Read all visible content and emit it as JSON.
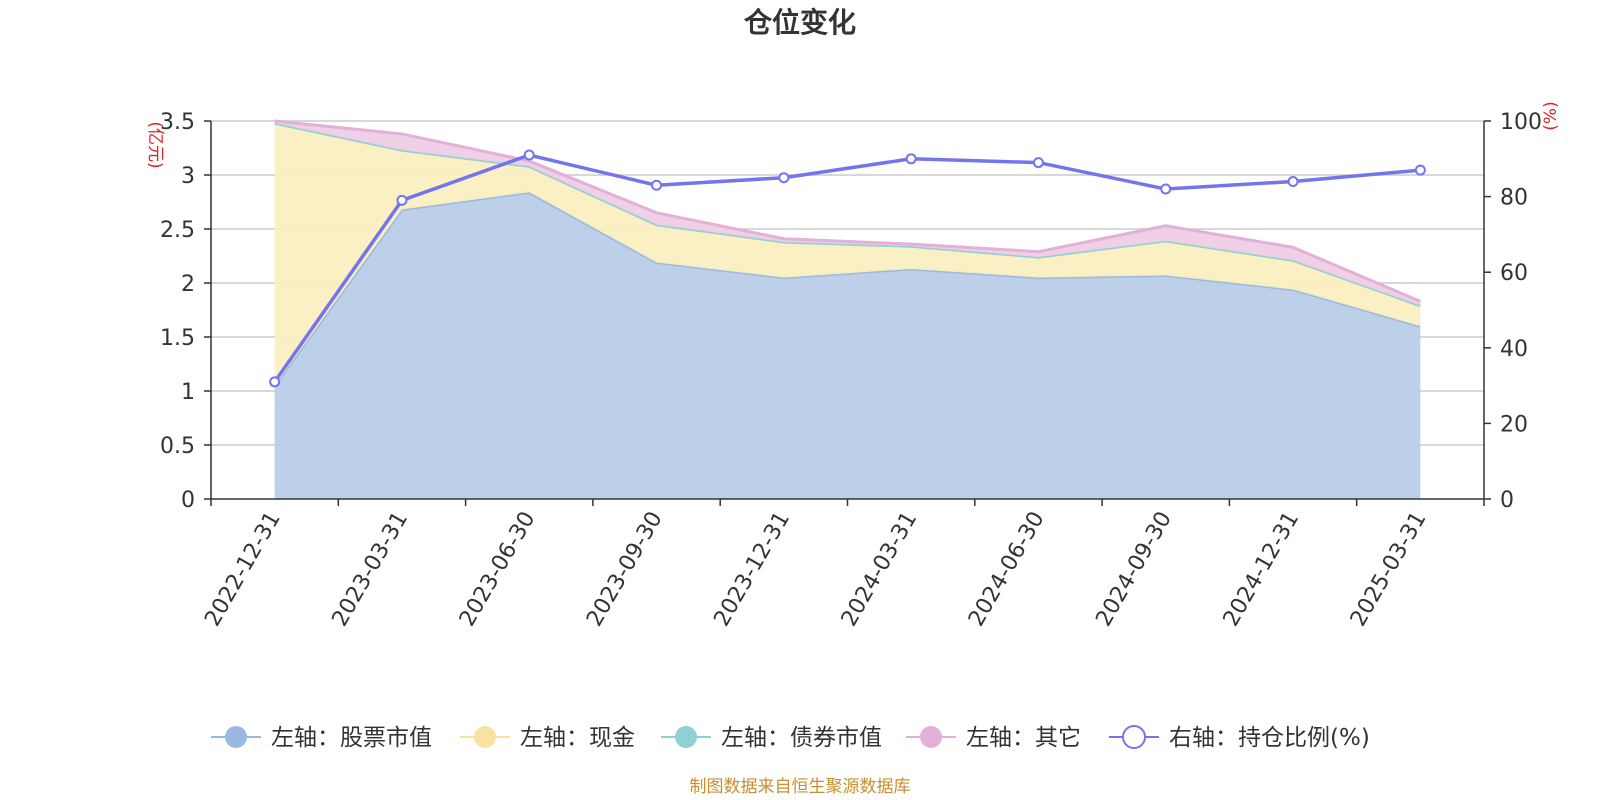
{
  "title": "仓位变化",
  "left_unit": "(亿元)",
  "right_unit": "(%)",
  "source": "制图数据来自恒生聚源数据库",
  "chart_data": {
    "type": "area",
    "title": "仓位变化",
    "categories": [
      "2022-12-31",
      "2023-03-31",
      "2023-06-30",
      "2023-09-30",
      "2023-12-31",
      "2024-03-31",
      "2024-06-30",
      "2024-09-30",
      "2024-12-31",
      "2025-03-31"
    ],
    "left_axis": {
      "unit": "(亿元)",
      "min": 0,
      "max": 3.5,
      "ticks": [
        "0",
        "0.5",
        "1",
        "1.5",
        "2",
        "2.5",
        "3",
        "3.5"
      ]
    },
    "right_axis": {
      "unit": "(%)",
      "min": 0,
      "max": 100,
      "ticks": [
        "0",
        "20",
        "40",
        "60",
        "80",
        "100"
      ]
    },
    "stacked": true,
    "series": [
      {
        "name": "左轴：股票市值",
        "axis": "left",
        "kind": "area",
        "color": "#9bb8e0",
        "fill": "#b8cde9",
        "values": [
          1.05,
          2.68,
          2.84,
          2.19,
          2.05,
          2.13,
          2.05,
          2.07,
          1.94,
          1.6
        ]
      },
      {
        "name": "左轴：现金",
        "axis": "left",
        "kind": "area",
        "color": "#f8e2a0",
        "fill": "#faefc0",
        "values": [
          2.43,
          0.55,
          0.24,
          0.35,
          0.33,
          0.21,
          0.19,
          0.32,
          0.27,
          0.19
        ]
      },
      {
        "name": "左轴：债券市值",
        "axis": "left",
        "kind": "area",
        "color": "#8ed0d3",
        "fill": "#bfe4e6",
        "values": [
          0,
          0,
          0,
          0,
          0,
          0,
          0,
          0,
          0,
          0
        ]
      },
      {
        "name": "左轴：其它",
        "axis": "left",
        "kind": "area",
        "color": "#e2b0d8",
        "fill": "#efcde6",
        "values": [
          0.02,
          0.15,
          0.05,
          0.11,
          0.03,
          0.02,
          0.05,
          0.14,
          0.12,
          0.04
        ]
      },
      {
        "name": "右轴：持仓比例(%)",
        "axis": "right",
        "kind": "line",
        "color": "#7474ee",
        "values": [
          31,
          79,
          91,
          83,
          85,
          90,
          89,
          82,
          84,
          87
        ]
      }
    ],
    "grid": true,
    "legend_position": "bottom"
  }
}
